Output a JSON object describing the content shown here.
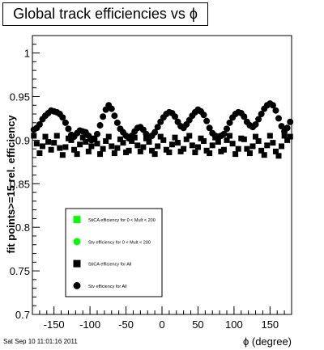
{
  "title": "Global track efficiencies vs ϕ",
  "footer": "Sat Sep 10 11:01:16 2011",
  "chart_data": {
    "type": "scatter",
    "title": "Global track efficiencies vs ϕ",
    "xlabel": "ϕ (degree)",
    "ylabel": "fit points>=15 rel. efficiency",
    "xlim": [
      -180,
      180
    ],
    "ylim": [
      0.7,
      1.02
    ],
    "xticks": [
      -150,
      -100,
      -50,
      0,
      50,
      100,
      150
    ],
    "xtick_labels": [
      "-150",
      "-100",
      "-50",
      "0",
      "50",
      "100",
      "150"
    ],
    "yticks": [
      0.7,
      0.75,
      0.8,
      0.85,
      0.9,
      0.95,
      1.0
    ],
    "ytick_labels": [
      "0.7",
      "0.75",
      "0.8",
      "0.85",
      "0.9",
      "0.95",
      "1"
    ],
    "legend_position": "bottom-left",
    "legend": [
      {
        "label": "StiCA efficiency  for 0 < Mult < 200",
        "marker": "square",
        "color": "#00ff00"
      },
      {
        "label": "Stv efficiency  for 0 < Mult < 200",
        "marker": "circle",
        "color": "#00ff00"
      },
      {
        "label": "StiCA efficiency  for All",
        "marker": "square",
        "color": "#000000"
      },
      {
        "label": "Stv efficiency  for All",
        "marker": "circle",
        "color": "#000000"
      }
    ],
    "series": [
      {
        "name": "Stv efficiency  for All",
        "marker": "circle",
        "color": "#000000",
        "x": [
          -178,
          -174,
          -170,
          -166,
          -162,
          -158,
          -154,
          -150,
          -146,
          -142,
          -138,
          -134,
          -130,
          -126,
          -122,
          -118,
          -114,
          -110,
          -106,
          -102,
          -98,
          -94,
          -90,
          -86,
          -82,
          -78,
          -74,
          -70,
          -66,
          -62,
          -58,
          -54,
          -50,
          -46,
          -42,
          -38,
          -34,
          -30,
          -26,
          -22,
          -18,
          -14,
          -10,
          -6,
          -2,
          2,
          6,
          10,
          14,
          18,
          22,
          26,
          30,
          34,
          38,
          42,
          46,
          50,
          54,
          58,
          62,
          66,
          70,
          74,
          78,
          82,
          86,
          90,
          94,
          98,
          102,
          106,
          110,
          114,
          118,
          122,
          126,
          130,
          134,
          138,
          142,
          146,
          150,
          154,
          158,
          162,
          166,
          170,
          174,
          178
        ],
        "values": [
          0.912,
          0.914,
          0.918,
          0.924,
          0.928,
          0.931,
          0.934,
          0.933,
          0.932,
          0.93,
          0.926,
          0.92,
          0.913,
          0.906,
          0.904,
          0.908,
          0.911,
          0.91,
          0.909,
          0.905,
          0.9,
          0.901,
          0.907,
          0.917,
          0.927,
          0.935,
          0.94,
          0.936,
          0.928,
          0.92,
          0.913,
          0.909,
          0.905,
          0.902,
          0.905,
          0.91,
          0.914,
          0.915,
          0.912,
          0.907,
          0.904,
          0.905,
          0.909,
          0.915,
          0.921,
          0.926,
          0.93,
          0.932,
          0.931,
          0.927,
          0.921,
          0.916,
          0.914,
          0.918,
          0.923,
          0.928,
          0.932,
          0.935,
          0.933,
          0.929,
          0.922,
          0.914,
          0.908,
          0.905,
          0.904,
          0.905,
          0.907,
          0.913,
          0.92,
          0.926,
          0.93,
          0.932,
          0.931,
          0.927,
          0.921,
          0.917,
          0.915,
          0.918,
          0.924,
          0.93,
          0.936,
          0.94,
          0.942,
          0.94,
          0.934,
          0.925,
          0.916,
          0.91,
          0.914,
          0.921
        ]
      },
      {
        "name": "StiCA efficiency  for All",
        "marker": "square",
        "color": "#000000",
        "x": [
          -178,
          -174,
          -170,
          -166,
          -162,
          -158,
          -154,
          -150,
          -146,
          -142,
          -138,
          -134,
          -130,
          -126,
          -122,
          -118,
          -114,
          -110,
          -106,
          -102,
          -98,
          -94,
          -90,
          -86,
          -82,
          -78,
          -74,
          -70,
          -66,
          -62,
          -58,
          -54,
          -50,
          -46,
          -42,
          -38,
          -34,
          -30,
          -26,
          -22,
          -18,
          -14,
          -10,
          -6,
          -2,
          2,
          6,
          10,
          14,
          18,
          22,
          26,
          30,
          34,
          38,
          42,
          46,
          50,
          54,
          58,
          62,
          66,
          70,
          74,
          78,
          82,
          86,
          90,
          94,
          98,
          102,
          106,
          110,
          114,
          118,
          122,
          126,
          130,
          134,
          138,
          142,
          146,
          150,
          154,
          158,
          162,
          166,
          170,
          174,
          178
        ],
        "values": [
          0.905,
          0.896,
          0.885,
          0.893,
          0.904,
          0.898,
          0.889,
          0.897,
          0.905,
          0.891,
          0.883,
          0.892,
          0.902,
          0.9,
          0.889,
          0.884,
          0.895,
          0.903,
          0.898,
          0.887,
          0.893,
          0.902,
          0.896,
          0.884,
          0.89,
          0.899,
          0.904,
          0.893,
          0.885,
          0.891,
          0.901,
          0.897,
          0.886,
          0.888,
          0.899,
          0.903,
          0.894,
          0.887,
          0.892,
          0.902,
          0.898,
          0.888,
          0.884,
          0.893,
          0.904,
          0.9,
          0.889,
          0.886,
          0.895,
          0.903,
          0.897,
          0.887,
          0.89,
          0.901,
          0.905,
          0.894,
          0.886,
          0.892,
          0.902,
          0.899,
          0.888,
          0.885,
          0.894,
          0.903,
          0.898,
          0.887,
          0.889,
          0.9,
          0.905,
          0.896,
          0.884,
          0.89,
          0.902,
          0.901,
          0.89,
          0.885,
          0.893,
          0.904,
          0.899,
          0.888,
          0.883,
          0.894,
          0.905,
          0.897,
          0.887,
          0.882,
          0.893,
          0.905,
          0.9,
          0.904
        ]
      }
    ]
  }
}
